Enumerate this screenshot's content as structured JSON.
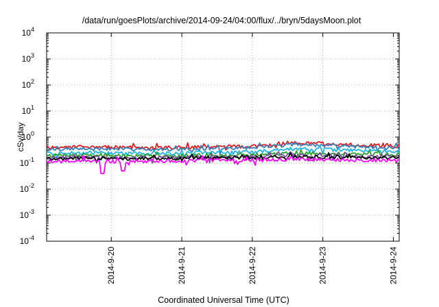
{
  "chart_data": {
    "type": "line",
    "title": "/data/run/goesPlots/archive/2014-09-24/04:00/flux/../bryn/5daysMoon.plot",
    "xlabel": "Coordinated Universal Time (UTC)",
    "ylabel": "cSv/day",
    "yscale": "log",
    "ylim": [
      0.0001,
      10000
    ],
    "y_ticks": [
      {
        "value": 0.0001,
        "base": "10",
        "exp": "-4"
      },
      {
        "value": 0.001,
        "base": "10",
        "exp": "-3"
      },
      {
        "value": 0.01,
        "base": "10",
        "exp": "-2"
      },
      {
        "value": 0.1,
        "base": "10",
        "exp": "-1"
      },
      {
        "value": 1,
        "base": "10",
        "exp": "0"
      },
      {
        "value": 10,
        "base": "10",
        "exp": "1"
      },
      {
        "value": 100,
        "base": "10",
        "exp": "2"
      },
      {
        "value": 1000,
        "base": "10",
        "exp": "3"
      },
      {
        "value": 10000,
        "base": "10",
        "exp": "4"
      }
    ],
    "xlim": [
      "2014-09-19T02:00",
      "2014-09-24T02:00"
    ],
    "x_ticks": [
      {
        "value": "2014-09-20T00:00",
        "label": "2014-9-20"
      },
      {
        "value": "2014-09-21T00:00",
        "label": "2014-9-21"
      },
      {
        "value": "2014-09-22T00:00",
        "label": "2014-9-22"
      },
      {
        "value": "2014-09-23T00:00",
        "label": "2014-9-23"
      },
      {
        "value": "2014-09-24T00:00",
        "label": "2014-9-24"
      }
    ],
    "grid": true,
    "x": [
      "2014-09-19T02:00",
      "2014-09-19T14:00",
      "2014-09-20T02:00",
      "2014-09-20T14:00",
      "2014-09-21T02:00",
      "2014-09-21T14:00",
      "2014-09-22T02:00",
      "2014-09-22T14:00",
      "2014-09-23T02:00",
      "2014-09-23T14:00",
      "2014-09-24T02:00"
    ],
    "series": [
      {
        "color": "#e41a1c",
        "values": [
          0.4,
          0.42,
          0.41,
          0.38,
          0.4,
          0.42,
          0.44,
          0.6,
          0.55,
          0.48,
          0.45
        ]
      },
      {
        "color": "#377eb8",
        "values": [
          0.34,
          0.36,
          0.35,
          0.33,
          0.35,
          0.37,
          0.4,
          0.52,
          0.48,
          0.42,
          0.4
        ]
      },
      {
        "color": "#1eb4e6",
        "values": [
          0.24,
          0.25,
          0.24,
          0.23,
          0.25,
          0.26,
          0.28,
          0.36,
          0.33,
          0.3,
          0.29
        ]
      },
      {
        "color": "#2ca02c",
        "values": [
          0.19,
          0.2,
          0.19,
          0.19,
          0.2,
          0.2,
          0.21,
          0.24,
          0.23,
          0.22,
          0.21
        ]
      },
      {
        "color": "#7b4fa0",
        "values": [
          0.16,
          0.17,
          0.16,
          0.16,
          0.17,
          0.17,
          0.18,
          0.2,
          0.19,
          0.18,
          0.18
        ]
      },
      {
        "color": "#000000",
        "values": [
          0.15,
          0.155,
          0.15,
          0.15,
          0.155,
          0.16,
          0.165,
          0.18,
          0.17,
          0.165,
          0.16
        ]
      },
      {
        "color": "#ff00ff",
        "values": [
          0.12,
          0.125,
          0.115,
          0.12,
          0.125,
          0.13,
          0.13,
          0.14,
          0.135,
          0.13,
          0.13
        ]
      }
    ],
    "dips": [
      {
        "x": "2014-09-19T21:00",
        "value": 0.04
      },
      {
        "x": "2014-09-20T04:00",
        "value": 0.05
      }
    ]
  }
}
